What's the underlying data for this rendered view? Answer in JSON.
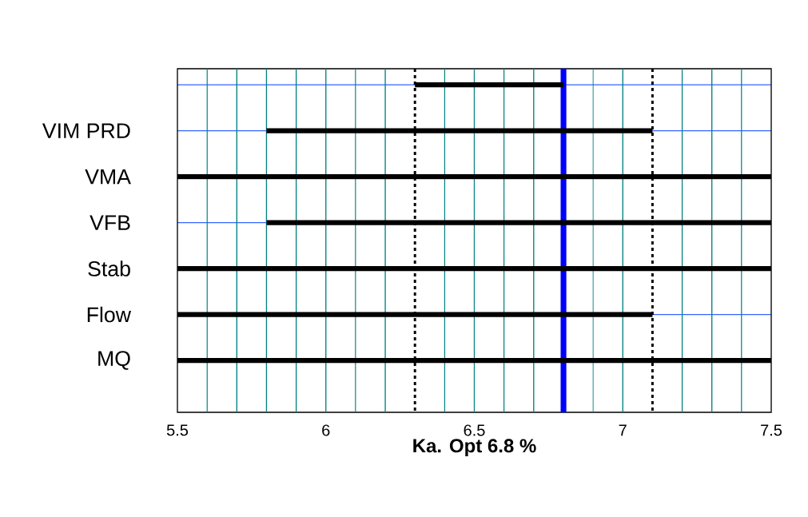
{
  "chart_data": {
    "type": "bar",
    "orientation": "horizontal",
    "xlabel": "Ka. Opt  6.8 %",
    "categories": [
      null,
      "VIM PRD",
      "VMA",
      "VFB",
      "Stab",
      "Flow",
      "MQ"
    ],
    "base": [
      6.3,
      5.8,
      5.5,
      5.8,
      5.5,
      5.5,
      5.5
    ],
    "values": [
      0.5,
      1.3,
      2.0,
      1.7,
      2.0,
      1.6,
      2.0
    ],
    "color": "#000000",
    "xlim": [
      5.5,
      7.5
    ],
    "xticks": [
      5.5,
      {
        "value": 5.6,
        "label": null
      },
      {
        "value": 5.7,
        "label": null
      },
      {
        "value": 5.8,
        "label": null
      },
      {
        "value": 5.9,
        "label": null
      },
      6,
      {
        "value": 6.1,
        "label": null
      },
      {
        "value": 6.2,
        "label": null
      },
      {
        "value": 6.4,
        "label": null
      },
      6.5,
      {
        "value": 6.6,
        "label": null
      },
      {
        "value": 6.7,
        "label": null
      },
      {
        "value": 6.9,
        "label": null
      },
      7,
      {
        "value": 7.2,
        "label": null
      },
      {
        "value": 7.3,
        "label": null
      },
      {
        "value": 7.4,
        "label": null
      },
      7.5
    ],
    "grid": true,
    "ref_lines": [
      {
        "axis": "x",
        "value": 6.3,
        "color": "#000000",
        "line_style": "dashed"
      },
      {
        "axis": "x",
        "value": 7.1,
        "color": "#000000",
        "line_style": "dashed"
      },
      {
        "axis": "x",
        "value": 6.8,
        "color": "#0000ff",
        "line_style": "solid"
      }
    ]
  }
}
